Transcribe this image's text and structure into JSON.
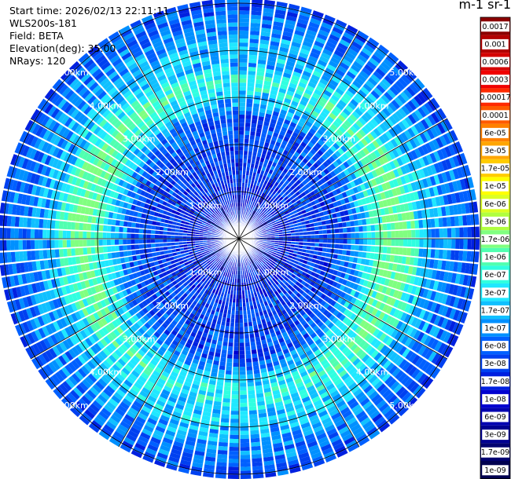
{
  "info": {
    "start_time": "Start time: 2026/02/13 22:11:11",
    "station": "WLS200s-181",
    "field": "Field: BETA",
    "elevation": "Elevation(deg): 35.00",
    "nrays": "NRays: 120"
  },
  "colorbar": {
    "unit_label": "m-1 sr-1",
    "ticks": [
      "0.0017",
      "0.001",
      "0.0006",
      "0.0003",
      "0.00017",
      "0.0001",
      "6e-05",
      "3e-05",
      "1.7e-05",
      "1e-05",
      "6e-06",
      "3e-06",
      "1.7e-06",
      "1e-06",
      "6e-07",
      "3e-07",
      "1.7e-07",
      "1e-07",
      "6e-08",
      "3e-08",
      "1.7e-08",
      "1e-08",
      "6e-09",
      "3e-09",
      "1.7e-09",
      "1e-09"
    ],
    "colors": [
      "#8b0000",
      "#b20000",
      "#d40000",
      "#f00000",
      "#ff2a00",
      "#ff5a00",
      "#ff8000",
      "#ffa500",
      "#ffcc00",
      "#ffff00",
      "#ddff22",
      "#b0ff40",
      "#80ff80",
      "#50ffb0",
      "#30ffe0",
      "#20e8ff",
      "#10c0ff",
      "#0090ff",
      "#0060ff",
      "#0040f0",
      "#0020e0",
      "#0000d0",
      "#0000b0",
      "#000090",
      "#000070",
      "#000050"
    ]
  },
  "chart_data": {
    "type": "polar_ppi",
    "title": "",
    "field": "BETA",
    "rings_km": [
      1,
      2,
      3,
      4,
      5
    ],
    "ring_labels": [
      "1.00km",
      "2.00km",
      "3.00km",
      "4.00km",
      "5.00km"
    ],
    "radial_lines_deg": [
      0,
      30,
      60,
      90,
      120,
      150,
      180,
      210,
      240,
      270,
      300,
      330
    ],
    "nrays": 120,
    "max_range_km": 5.1,
    "radial_profile": {
      "range_km": [
        0,
        0.5,
        1.0,
        1.5,
        2.0,
        2.5,
        2.8,
        3.1,
        3.4,
        3.7,
        4.0,
        4.4,
        4.8,
        5.1
      ],
      "color_index": [
        20,
        20,
        20,
        19,
        19,
        18,
        16,
        14,
        13,
        15,
        16,
        17,
        18,
        19
      ]
    }
  }
}
